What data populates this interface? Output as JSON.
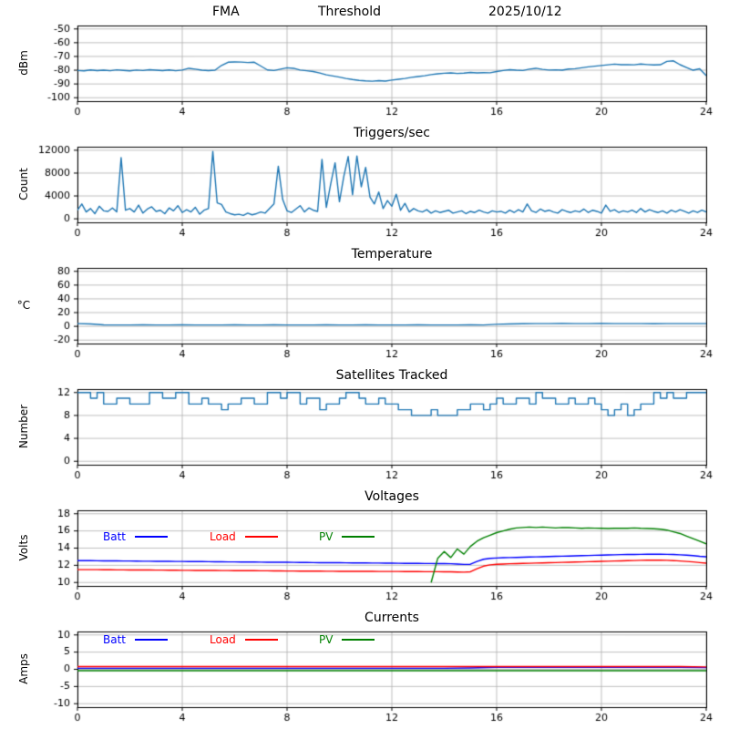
{
  "figure": {
    "background": "#ffffff",
    "grid_color": "#b0b0b0",
    "axis_color": "#000000"
  },
  "chart_data": [
    {
      "type": "line",
      "title_parts": [
        "FMA",
        "Threshold",
        "2025/10/12"
      ],
      "ylabel": "dBm",
      "xlim": [
        0,
        24
      ],
      "xticks": [
        0,
        4,
        8,
        12,
        16,
        20,
        24
      ],
      "ylim": [
        -102.5,
        -47.5
      ],
      "yticks": [
        -100,
        -90,
        -80,
        -70,
        -60,
        -50
      ],
      "grid": true,
      "series": [
        {
          "color": "#1f77b4",
          "values": [
            -80.2,
            -80.5,
            -79.8,
            -80.3,
            -80.0,
            -80.4,
            -79.7,
            -80.1,
            -80.5,
            -79.9,
            -80.2,
            -79.6,
            -80.0,
            -80.3,
            -79.8,
            -80.4,
            -79.9,
            -78.6,
            -79.2,
            -80.0,
            -80.3,
            -80.0,
            -76.5,
            -74.2,
            -74.0,
            -74.1,
            -74.4,
            -74.2,
            -77.0,
            -79.8,
            -80.2,
            -79.2,
            -78.2,
            -78.6,
            -79.9,
            -80.4,
            -81.0,
            -82.0,
            -83.4,
            -84.2,
            -85.0,
            -86.0,
            -86.8,
            -87.4,
            -87.8,
            -88.0,
            -87.6,
            -87.9,
            -87.2,
            -86.6,
            -86.0,
            -85.2,
            -84.6,
            -84.0,
            -83.2,
            -82.6,
            -82.2,
            -82.0,
            -82.4,
            -82.1,
            -81.6,
            -82.0,
            -81.8,
            -81.9,
            -81.0,
            -80.2,
            -79.6,
            -80.0,
            -80.2,
            -79.2,
            -78.6,
            -79.4,
            -79.9,
            -79.7,
            -80.0,
            -79.1,
            -78.9,
            -78.2,
            -77.6,
            -77.1,
            -76.6,
            -76.1,
            -75.6,
            -76.0,
            -75.9,
            -76.1,
            -75.5,
            -75.9,
            -76.2,
            -76.0,
            -73.6,
            -73.2,
            -76.0,
            -78.0,
            -80.0,
            -79.0,
            -84.0
          ]
        }
      ]
    },
    {
      "type": "line",
      "title": "Triggers/sec",
      "ylabel": "Count",
      "xlim": [
        0,
        24
      ],
      "xticks": [
        0,
        4,
        8,
        12,
        16,
        20,
        24
      ],
      "ylim": [
        -620,
        12620
      ],
      "yticks": [
        0,
        4000,
        8000,
        12000
      ],
      "grid": true,
      "series": [
        {
          "color": "#1f77b4",
          "values": [
            1500,
            2600,
            1200,
            1800,
            900,
            2200,
            1400,
            1300,
            1900,
            1200,
            10700,
            1500,
            1800,
            1200,
            2400,
            1000,
            1700,
            2100,
            1300,
            1500,
            900,
            1900,
            1400,
            2300,
            1100,
            1600,
            1200,
            2000,
            800,
            1500,
            1800,
            11800,
            2800,
            2500,
            1200,
            900,
            700,
            800,
            600,
            1000,
            700,
            900,
            1200,
            1000,
            1800,
            2600,
            9200,
            3400,
            1400,
            1100,
            1700,
            2300,
            1200,
            1900,
            1500,
            1300,
            10400,
            2000,
            6100,
            9800,
            3000,
            7400,
            10900,
            4200,
            11000,
            5600,
            9000,
            3800,
            2600,
            4700,
            1800,
            3200,
            2200,
            4300,
            1500,
            2700,
            1200,
            1800,
            1400,
            1200,
            1600,
            1000,
            1400,
            1100,
            1300,
            1500,
            1000,
            1200,
            1400,
            900,
            1300,
            1100,
            1500,
            1200,
            1000,
            1400,
            1200,
            1300,
            1000,
            1500,
            1100,
            1600,
            1200,
            2600,
            1400,
            1100,
            1700,
            1300,
            1500,
            1200,
            1000,
            1600,
            1300,
            1100,
            1400,
            1200,
            1700,
            1100,
            1500,
            1300,
            1000,
            2400,
            1300,
            1600,
            1100,
            1400,
            1200,
            1500,
            1100,
            1800,
            1200,
            1600,
            1300,
            1100,
            1400,
            1000,
            1500,
            1200,
            1600,
            1300,
            1000,
            1400,
            1100,
            1500,
            1200
          ]
        }
      ]
    },
    {
      "type": "line",
      "title": "Temperature",
      "ylabel": "°C",
      "xlim": [
        0,
        24
      ],
      "xticks": [
        0,
        4,
        8,
        12,
        16,
        20,
        24
      ],
      "ylim": [
        -25,
        85
      ],
      "yticks": [
        -20,
        0,
        20,
        40,
        60,
        80
      ],
      "grid": true,
      "series": [
        {
          "color": "#1f77b4",
          "values": [
            4.0,
            3.5,
            2.2,
            2.0,
            2.0,
            2.1,
            2.0,
            2.0,
            2.1,
            2.0,
            2.0,
            2.0,
            2.1,
            2.0,
            2.0,
            2.1,
            2.0,
            2.0,
            2.0,
            2.1,
            2.0,
            2.0,
            2.1,
            2.0,
            2.0,
            2.0,
            2.1,
            2.0,
            2.0,
            2.0,
            2.1,
            2.0,
            3.0,
            3.5,
            3.8,
            4.0,
            4.0,
            4.1,
            4.0,
            4.0,
            4.1,
            4.0,
            4.0,
            4.0,
            3.9,
            4.0,
            4.0,
            4.0,
            4.0
          ]
        }
      ]
    },
    {
      "type": "line",
      "title": "Satellites Tracked",
      "ylabel": "Number",
      "xlim": [
        0,
        24
      ],
      "xticks": [
        0,
        4,
        8,
        12,
        16,
        20,
        24
      ],
      "ylim": [
        -0.6,
        12.6
      ],
      "yticks": [
        0,
        4,
        8,
        12
      ],
      "grid": true,
      "series": [
        {
          "color": "#1f77b4",
          "step": true,
          "values": [
            12,
            12,
            11,
            12,
            10,
            10,
            11,
            11,
            10,
            10,
            10,
            12,
            12,
            11,
            11,
            12,
            12,
            10,
            10,
            11,
            10,
            10,
            9,
            10,
            10,
            11,
            11,
            10,
            10,
            12,
            12,
            11,
            12,
            12,
            10,
            11,
            11,
            9,
            10,
            10,
            11,
            12,
            12,
            11,
            10,
            10,
            11,
            10,
            10,
            9,
            9,
            8,
            8,
            8,
            9,
            8,
            8,
            8,
            9,
            9,
            10,
            10,
            9,
            10,
            11,
            10,
            10,
            11,
            11,
            10,
            12,
            11,
            11,
            10,
            10,
            11,
            10,
            10,
            11,
            10,
            9,
            8,
            9,
            10,
            8,
            9,
            10,
            10,
            12,
            11,
            12,
            11,
            11,
            12,
            12,
            12,
            12
          ]
        }
      ]
    },
    {
      "type": "line",
      "title": "Voltages",
      "ylabel": "Volts",
      "xlim": [
        0,
        24
      ],
      "xticks": [
        0,
        4,
        8,
        12,
        16,
        20,
        24
      ],
      "ylim": [
        9.6,
        18.4
      ],
      "yticks": [
        10,
        12,
        14,
        16,
        18
      ],
      "grid": true,
      "legend_position": "upper-left-inside",
      "series": [
        {
          "name": "Batt",
          "color": "#0000ff",
          "values": [
            12.55,
            12.54,
            12.54,
            12.53,
            12.52,
            12.52,
            12.51,
            12.5,
            12.5,
            12.49,
            12.48,
            12.48,
            12.47,
            12.46,
            12.46,
            12.45,
            12.45,
            12.44,
            12.43,
            12.43,
            12.42,
            12.41,
            12.41,
            12.4,
            12.4,
            12.39,
            12.38,
            12.38,
            12.37,
            12.36,
            12.36,
            12.35,
            12.35,
            12.34,
            12.33,
            12.33,
            12.32,
            12.31,
            12.31,
            12.3,
            12.3,
            12.29,
            12.28,
            12.28,
            12.27,
            12.26,
            12.26,
            12.25,
            12.25,
            12.24,
            12.23,
            12.23,
            12.22,
            12.21,
            12.21,
            12.2,
            12.2,
            12.18,
            12.15,
            12.1,
            12.12,
            12.45,
            12.7,
            12.8,
            12.85,
            12.88,
            12.9,
            12.92,
            12.94,
            12.96,
            12.98,
            13.0,
            13.02,
            13.04,
            13.06,
            13.08,
            13.1,
            13.12,
            13.14,
            13.16,
            13.18,
            13.2,
            13.22,
            13.24,
            13.25,
            13.26,
            13.27,
            13.28,
            13.28,
            13.28,
            13.27,
            13.25,
            13.22,
            13.18,
            13.12,
            13.05,
            13.0
          ]
        },
        {
          "name": "Load",
          "color": "#ff0000",
          "values": [
            11.5,
            11.5,
            11.49,
            11.49,
            11.48,
            11.48,
            11.47,
            11.47,
            11.46,
            11.46,
            11.45,
            11.45,
            11.44,
            11.44,
            11.43,
            11.43,
            11.42,
            11.42,
            11.41,
            11.41,
            11.4,
            11.4,
            11.39,
            11.39,
            11.38,
            11.38,
            11.37,
            11.37,
            11.36,
            11.36,
            11.35,
            11.35,
            11.34,
            11.34,
            11.33,
            11.33,
            11.32,
            11.32,
            11.31,
            11.31,
            11.3,
            11.3,
            11.3,
            11.29,
            11.29,
            11.29,
            11.28,
            11.28,
            11.28,
            11.28,
            11.27,
            11.27,
            11.27,
            11.26,
            11.26,
            11.26,
            11.25,
            11.24,
            11.22,
            11.2,
            11.25,
            11.6,
            11.9,
            12.05,
            12.12,
            12.15,
            12.18,
            12.2,
            12.22,
            12.24,
            12.26,
            12.28,
            12.3,
            12.32,
            12.34,
            12.36,
            12.38,
            12.4,
            12.42,
            12.44,
            12.46,
            12.48,
            12.5,
            12.52,
            12.54,
            12.56,
            12.58,
            12.6,
            12.6,
            12.6,
            12.58,
            12.55,
            12.5,
            12.45,
            12.4,
            12.32,
            12.25
          ]
        },
        {
          "name": "PV",
          "color": "#008000",
          "values": [
            null,
            null,
            null,
            null,
            null,
            null,
            null,
            null,
            null,
            null,
            null,
            null,
            null,
            null,
            null,
            null,
            null,
            null,
            null,
            null,
            null,
            null,
            null,
            null,
            null,
            null,
            null,
            null,
            null,
            null,
            null,
            null,
            null,
            null,
            null,
            null,
            null,
            null,
            null,
            null,
            null,
            null,
            null,
            null,
            null,
            null,
            null,
            null,
            null,
            null,
            null,
            null,
            null,
            null,
            10.0,
            12.8,
            13.6,
            12.9,
            13.9,
            13.3,
            14.2,
            14.8,
            15.2,
            15.5,
            15.8,
            16.0,
            16.2,
            16.35,
            16.4,
            16.45,
            16.4,
            16.45,
            16.4,
            16.35,
            16.4,
            16.38,
            16.35,
            16.3,
            16.35,
            16.32,
            16.3,
            16.28,
            16.3,
            16.32,
            16.3,
            16.35,
            16.3,
            16.28,
            16.25,
            16.2,
            16.1,
            15.9,
            15.7,
            15.4,
            15.1,
            14.8,
            14.5
          ]
        }
      ]
    },
    {
      "type": "line",
      "title": "Currents",
      "ylabel": "Amps",
      "xlim": [
        0,
        24
      ],
      "xticks": [
        0,
        4,
        8,
        12,
        16,
        20,
        24
      ],
      "ylim": [
        -11,
        11
      ],
      "yticks": [
        -10,
        -5,
        0,
        5,
        10
      ],
      "grid": true,
      "legend_position": "upper-left-inside",
      "series": [
        {
          "name": "Batt",
          "color": "#0000ff",
          "values": [
            0.3,
            0.3,
            0.3,
            0.3,
            0.3,
            0.3,
            0.3,
            0.3,
            0.3,
            0.3,
            0.3,
            0.3,
            0.3,
            0.3,
            0.3,
            0.4,
            0.6,
            0.6,
            0.6,
            0.6,
            0.6,
            0.6,
            0.6,
            0.6,
            0.5
          ]
        },
        {
          "name": "Load",
          "color": "#ff0000",
          "values": [
            0.8,
            0.8,
            0.8,
            0.8,
            0.8,
            0.8,
            0.8,
            0.8,
            0.8,
            0.8,
            0.8,
            0.8,
            0.8,
            0.8,
            0.8,
            0.8,
            0.8,
            0.8,
            0.8,
            0.8,
            0.8,
            0.8,
            0.8,
            0.8,
            0.7
          ]
        },
        {
          "name": "PV",
          "color": "#008000",
          "values": [
            -0.4,
            -0.4,
            -0.4,
            -0.4,
            -0.4,
            -0.4,
            -0.4,
            -0.4,
            -0.4,
            -0.4,
            -0.4,
            -0.4,
            -0.4,
            -0.4,
            -0.4,
            -0.4,
            -0.4,
            -0.4,
            -0.4,
            -0.4,
            -0.4,
            -0.4,
            -0.4,
            -0.4,
            -0.4
          ]
        }
      ]
    }
  ]
}
